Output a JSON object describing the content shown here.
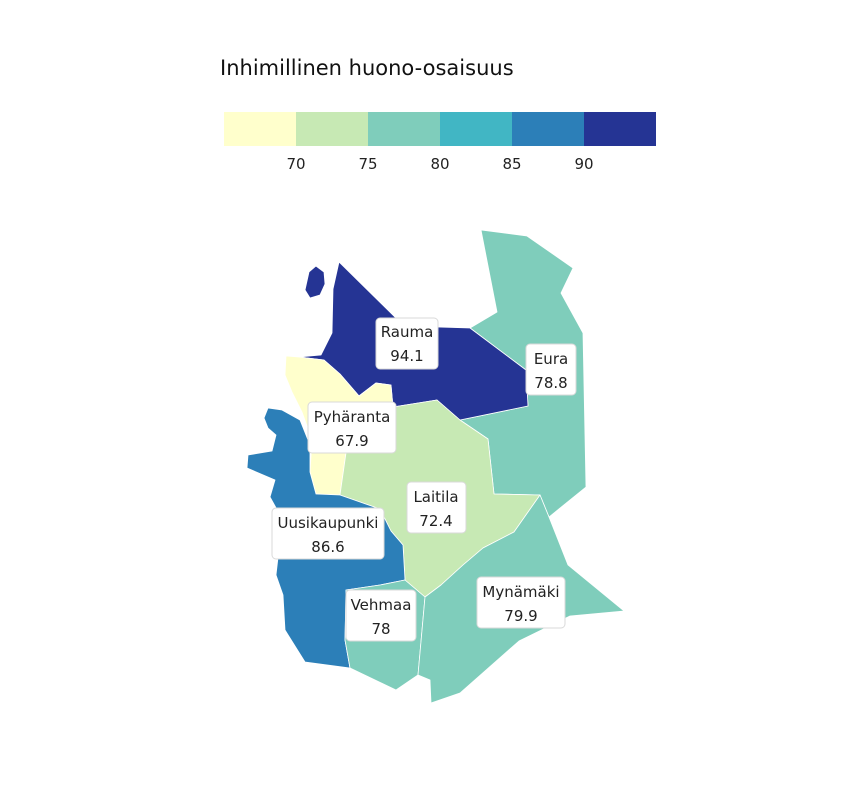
{
  "legend": {
    "title": "Inhimillinen huono-osaisuus",
    "colors": [
      "#ffffcc",
      "#c7e9b4",
      "#7fcdbb",
      "#41b6c4",
      "#2c7fb8",
      "#253494"
    ],
    "ticks": [
      "70",
      "75",
      "80",
      "85",
      "90"
    ]
  },
  "regions": [
    {
      "id": "rauma",
      "name": "Rauma",
      "value": "94.1",
      "color": "#253494"
    },
    {
      "id": "eura",
      "name": "Eura",
      "value": "78.8",
      "color": "#7fcdbb"
    },
    {
      "id": "pyharanta",
      "name": "Pyhäranta",
      "value": "67.9",
      "color": "#ffffcc"
    },
    {
      "id": "laitila",
      "name": "Laitila",
      "value": "72.4",
      "color": "#c7e9b4"
    },
    {
      "id": "uusikaupunki",
      "name": "Uusikaupunki",
      "value": "86.6",
      "color": "#2c7fb8"
    },
    {
      "id": "vehmaa",
      "name": "Vehmaa",
      "value": "78",
      "color": "#7fcdbb"
    },
    {
      "id": "mynamaki",
      "name": "Mynämäki",
      "value": "79.9",
      "color": "#7fcdbb"
    }
  ]
}
